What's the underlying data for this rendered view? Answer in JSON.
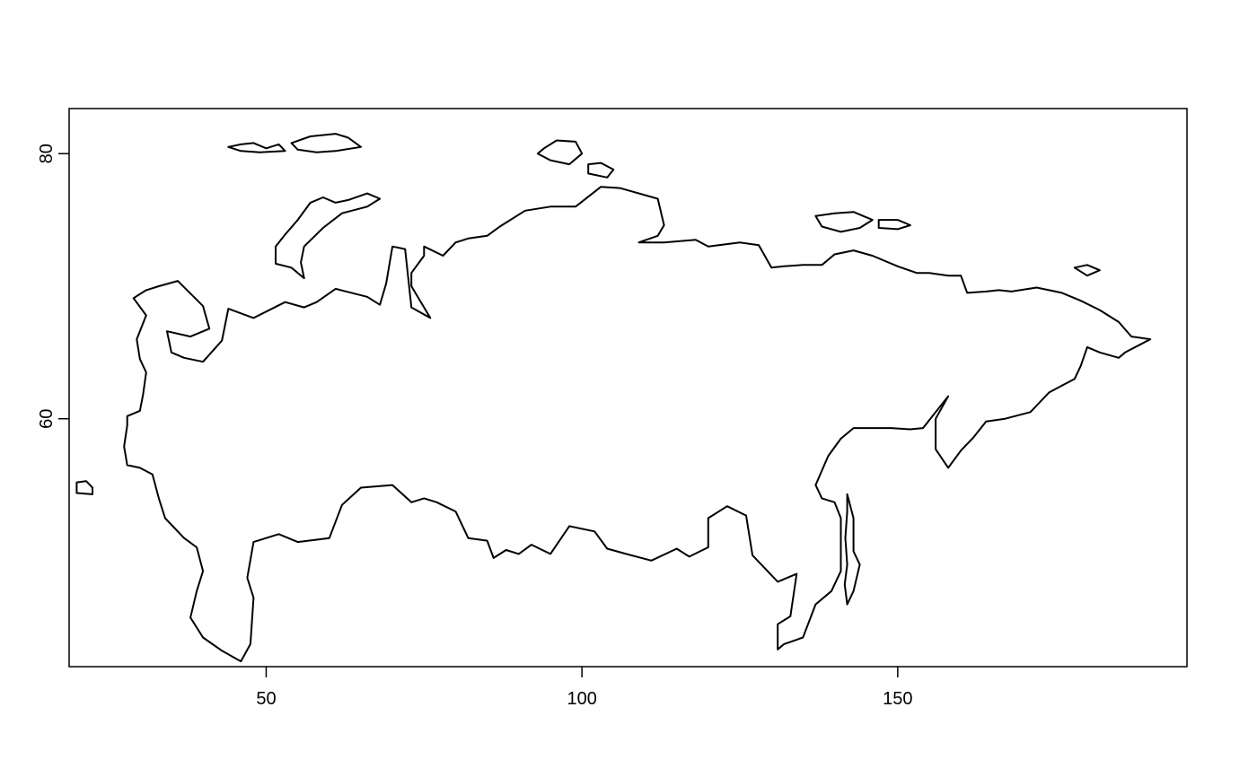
{
  "map": {
    "title": "",
    "xlabel": "",
    "ylabel": "",
    "xlim": [
      18.8,
      195.8
    ],
    "ylim": [
      41.3,
      83.4
    ],
    "x_ticks": [
      50,
      100,
      150
    ],
    "y_ticks": [
      60,
      80
    ],
    "x_tick_labels": [
      "50",
      "100",
      "150"
    ],
    "y_tick_labels": [
      "60",
      "80"
    ],
    "line_color": "#000000",
    "features": [
      {
        "name": "",
        "points": [
          [
            33,
            70
          ],
          [
            36,
            70.4
          ],
          [
            40,
            68.5
          ],
          [
            41,
            66.8
          ],
          [
            38,
            66.2
          ],
          [
            34.3,
            66.6
          ],
          [
            35,
            65
          ],
          [
            37,
            64.6
          ],
          [
            40,
            64.3
          ],
          [
            43,
            65.9
          ],
          [
            44,
            68.3
          ],
          [
            48,
            67.6
          ],
          [
            53,
            68.8
          ],
          [
            56,
            68.4
          ],
          [
            58,
            68.8
          ],
          [
            61,
            69.8
          ],
          [
            66,
            69.2
          ],
          [
            68,
            68.6
          ],
          [
            69,
            70.2
          ],
          [
            70,
            73
          ],
          [
            72,
            72.8
          ],
          [
            73,
            68.4
          ],
          [
            76,
            67.6
          ],
          [
            73,
            70
          ],
          [
            73,
            71
          ],
          [
            75,
            72.3
          ],
          [
            75,
            73
          ],
          [
            78,
            72.3
          ],
          [
            80,
            73.3
          ],
          [
            82,
            73.6
          ],
          [
            85,
            73.8
          ],
          [
            87,
            74.5
          ],
          [
            91,
            75.7
          ],
          [
            95,
            76
          ],
          [
            99,
            76
          ],
          [
            103,
            77.5
          ],
          [
            106,
            77.4
          ],
          [
            112,
            76.6
          ],
          [
            113,
            74.6
          ],
          [
            112,
            73.8
          ],
          [
            109,
            73.3
          ],
          [
            113,
            73.3
          ],
          [
            118,
            73.5
          ],
          [
            120,
            73
          ],
          [
            125,
            73.3
          ],
          [
            128,
            73.1
          ],
          [
            130,
            71.4
          ],
          [
            132,
            71.5
          ],
          [
            135,
            71.6
          ],
          [
            138,
            71.6
          ],
          [
            140,
            72.4
          ],
          [
            143,
            72.7
          ],
          [
            146,
            72.3
          ],
          [
            150,
            71.5
          ],
          [
            153,
            71
          ],
          [
            155,
            71
          ],
          [
            158,
            70.8
          ],
          [
            160,
            70.8
          ],
          [
            161,
            69.5
          ],
          [
            164,
            69.6
          ],
          [
            166,
            69.7
          ],
          [
            168,
            69.6
          ],
          [
            172,
            69.9
          ],
          [
            176,
            69.5
          ],
          [
            179,
            68.9
          ],
          [
            182,
            68.2
          ],
          [
            185,
            67.3
          ],
          [
            187,
            66.2
          ],
          [
            190,
            66
          ],
          [
            186,
            65
          ],
          [
            185,
            64.6
          ],
          [
            182,
            65
          ],
          [
            180,
            65.4
          ],
          [
            179,
            64
          ],
          [
            178,
            63
          ],
          [
            176,
            62.5
          ],
          [
            174,
            62
          ],
          [
            171,
            60.5
          ],
          [
            167,
            60
          ],
          [
            164,
            59.8
          ],
          [
            162,
            58.6
          ],
          [
            160,
            57.6
          ],
          [
            158,
            56.3
          ],
          [
            156,
            57.7
          ],
          [
            156,
            60
          ],
          [
            158,
            61.7
          ],
          [
            154,
            59.3
          ],
          [
            152,
            59.2
          ],
          [
            149,
            59.3
          ],
          [
            146,
            59.3
          ],
          [
            143,
            59.3
          ],
          [
            141,
            58.5
          ],
          [
            139,
            57.2
          ],
          [
            137,
            55
          ],
          [
            138,
            54
          ],
          [
            140,
            53.7
          ],
          [
            141,
            52.5
          ],
          [
            141,
            48.5
          ],
          [
            139.5,
            47
          ],
          [
            137,
            46
          ],
          [
            135,
            43.5
          ],
          [
            132,
            43
          ],
          [
            131,
            42.6
          ],
          [
            131,
            44.5
          ],
          [
            133,
            45.1
          ],
          [
            134,
            48.3
          ],
          [
            131,
            47.7
          ],
          [
            127,
            49.7
          ],
          [
            126,
            52.7
          ],
          [
            123,
            53.4
          ],
          [
            120,
            52.5
          ],
          [
            120,
            50.3
          ],
          [
            117,
            49.6
          ],
          [
            115,
            50.2
          ],
          [
            111,
            49.3
          ],
          [
            107,
            49.8
          ],
          [
            104,
            50.2
          ],
          [
            102,
            51.5
          ],
          [
            98,
            51.9
          ],
          [
            95,
            49.8
          ],
          [
            92,
            50.5
          ],
          [
            90,
            49.8
          ],
          [
            88,
            50.1
          ],
          [
            86,
            49.5
          ],
          [
            85,
            50.8
          ],
          [
            82,
            51
          ],
          [
            80,
            53
          ],
          [
            77,
            53.7
          ],
          [
            75,
            54
          ],
          [
            73,
            53.7
          ],
          [
            70,
            55
          ],
          [
            65,
            54.8
          ],
          [
            62,
            53.5
          ],
          [
            60,
            51
          ],
          [
            55,
            50.7
          ],
          [
            52,
            51.3
          ],
          [
            48,
            50.7
          ],
          [
            47,
            48
          ],
          [
            48,
            46.5
          ],
          [
            47.5,
            43
          ],
          [
            46,
            41.7
          ],
          [
            43,
            42.5
          ],
          [
            40,
            43.5
          ],
          [
            38,
            45
          ],
          [
            39,
            47
          ],
          [
            40,
            48.5
          ],
          [
            39,
            50.3
          ],
          [
            37,
            51
          ],
          [
            34,
            52.5
          ],
          [
            33,
            54
          ],
          [
            32,
            55.8
          ],
          [
            30,
            56.3
          ],
          [
            28,
            56.5
          ],
          [
            27.5,
            57.9
          ],
          [
            28,
            59.5
          ],
          [
            28,
            60.2
          ],
          [
            30,
            60.6
          ],
          [
            30.5,
            61.8
          ],
          [
            31,
            63.5
          ],
          [
            30,
            64.5
          ],
          [
            29.5,
            66
          ],
          [
            31,
            67.8
          ],
          [
            29,
            69.1
          ],
          [
            31,
            69.7
          ],
          [
            33,
            70
          ]
        ]
      },
      {
        "name": "",
        "points": [
          [
            56,
            70.6
          ],
          [
            54,
            71.4
          ],
          [
            51.5,
            71.7
          ],
          [
            51.5,
            73
          ],
          [
            53,
            73.9
          ],
          [
            55,
            75
          ],
          [
            57,
            76.3
          ],
          [
            59,
            76.7
          ],
          [
            61,
            76.3
          ],
          [
            63,
            76.5
          ],
          [
            66,
            77
          ],
          [
            68,
            76.6
          ],
          [
            66,
            76
          ],
          [
            62,
            75.5
          ],
          [
            59,
            74.4
          ],
          [
            56,
            73
          ],
          [
            55.5,
            71.8
          ],
          [
            56,
            70.6
          ]
        ]
      },
      {
        "name": "",
        "points": [
          [
            44,
            80.5
          ],
          [
            46,
            80.7
          ],
          [
            48,
            80.8
          ],
          [
            50,
            80.4
          ],
          [
            52,
            80.7
          ],
          [
            53,
            80.2
          ],
          [
            49,
            80.1
          ],
          [
            46,
            80.2
          ],
          [
            44,
            80.5
          ]
        ]
      },
      {
        "name": "",
        "points": [
          [
            54,
            80.8
          ],
          [
            57,
            81.3
          ],
          [
            61,
            81.5
          ],
          [
            63,
            81.2
          ],
          [
            65,
            80.5
          ],
          [
            61,
            80.2
          ],
          [
            58,
            80.1
          ],
          [
            55,
            80.3
          ],
          [
            54,
            80.8
          ]
        ]
      },
      {
        "name": "",
        "points": [
          [
            94,
            80.4
          ],
          [
            96,
            81
          ],
          [
            99,
            80.9
          ],
          [
            100,
            80
          ],
          [
            98,
            79.2
          ],
          [
            95,
            79.5
          ],
          [
            93,
            80
          ],
          [
            94,
            80.4
          ]
        ]
      },
      {
        "name": "",
        "points": [
          [
            101,
            79.2
          ],
          [
            103,
            79.3
          ],
          [
            105,
            78.8
          ],
          [
            104,
            78.2
          ],
          [
            101,
            78.5
          ],
          [
            101,
            79.2
          ]
        ]
      },
      {
        "name": "",
        "points": [
          [
            137,
            75.3
          ],
          [
            140,
            75.5
          ],
          [
            143,
            75.6
          ],
          [
            146,
            75
          ],
          [
            144,
            74.4
          ],
          [
            141,
            74.1
          ],
          [
            138,
            74.5
          ],
          [
            137,
            75.3
          ]
        ]
      },
      {
        "name": "",
        "points": [
          [
            147,
            75
          ],
          [
            150,
            75
          ],
          [
            152,
            74.6
          ],
          [
            150,
            74.3
          ],
          [
            147,
            74.4
          ],
          [
            147,
            75
          ]
        ]
      },
      {
        "name": "",
        "points": [
          [
            178,
            71.4
          ],
          [
            180,
            71.6
          ],
          [
            182,
            71.2
          ],
          [
            180,
            70.8
          ],
          [
            178,
            71.4
          ]
        ]
      },
      {
        "name": "",
        "points": [
          [
            142,
            54.3
          ],
          [
            143,
            52.5
          ],
          [
            143,
            50
          ],
          [
            144,
            49
          ],
          [
            143,
            47
          ],
          [
            142,
            46
          ],
          [
            141.6,
            47.5
          ],
          [
            142,
            49
          ],
          [
            141.7,
            51
          ],
          [
            142,
            53
          ],
          [
            142,
            54.3
          ]
        ]
      },
      {
        "name": "",
        "points": [
          [
            20,
            55.2
          ],
          [
            21.5,
            55.3
          ],
          [
            22.5,
            54.8
          ],
          [
            22.5,
            54.3
          ],
          [
            20,
            54.4
          ],
          [
            20,
            55.2
          ]
        ]
      }
    ]
  }
}
